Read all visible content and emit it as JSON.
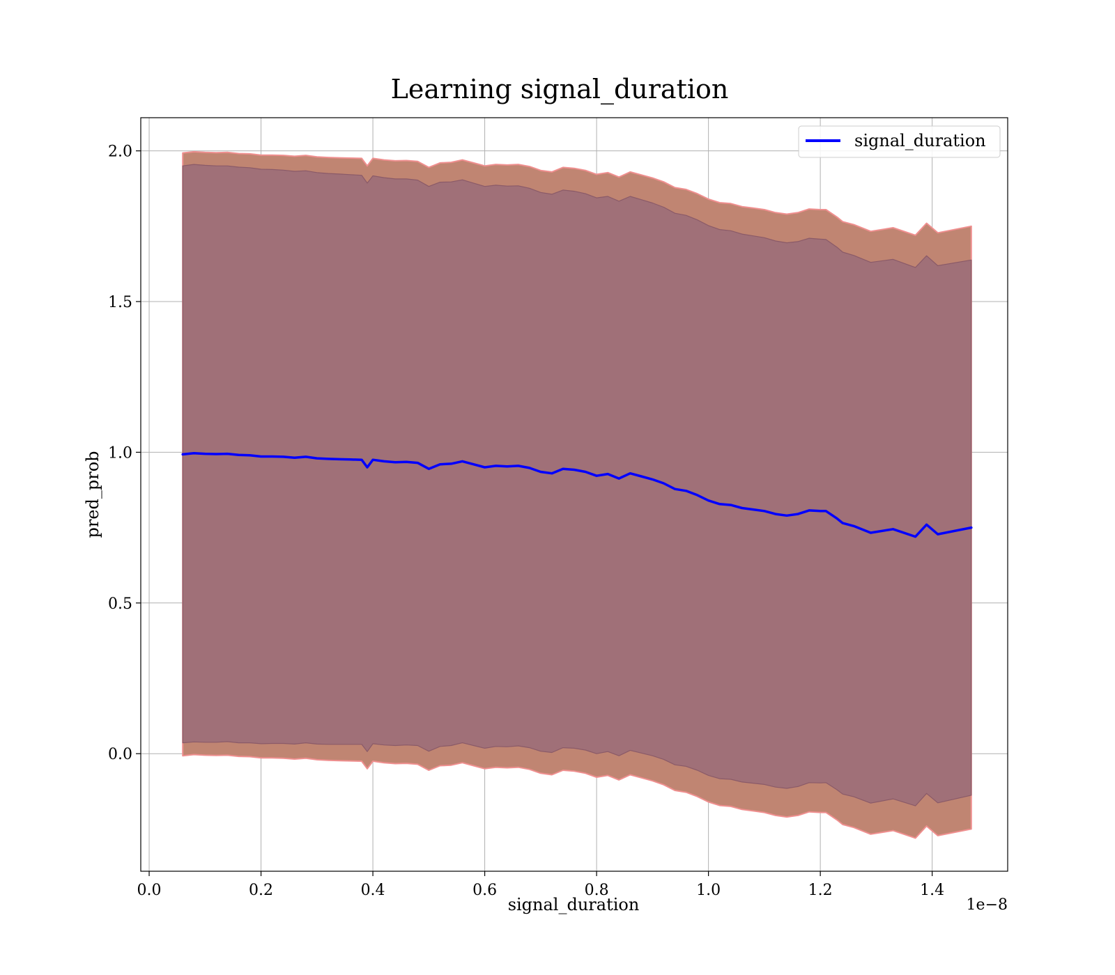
{
  "chart_data": {
    "type": "line",
    "title": "Learning signal_duration",
    "xlabel": "signal_duration",
    "ylabel": "pred_prob",
    "x_offset_text": "1e−8",
    "x_multiplier": 1e-08,
    "xlim": [
      -0.015,
      1.535
    ],
    "ylim": [
      -0.39,
      2.11
    ],
    "xticks": [
      0.0,
      0.2,
      0.4,
      0.6,
      0.8,
      1.0,
      1.2,
      1.4
    ],
    "xtick_labels": [
      "0.0",
      "0.2",
      "0.4",
      "0.6",
      "0.8",
      "1.0",
      "1.2",
      "1.4"
    ],
    "yticks": [
      0.0,
      0.5,
      1.0,
      1.5,
      2.0
    ],
    "ytick_labels": [
      "0.0",
      "0.5",
      "1.0",
      "1.5",
      "2.0"
    ],
    "grid": true,
    "legend_position": "top-right",
    "series": [
      {
        "name": "signal_duration",
        "color": "#0000ff",
        "x": [
          0.06,
          0.08,
          0.1,
          0.12,
          0.14,
          0.16,
          0.18,
          0.2,
          0.22,
          0.24,
          0.26,
          0.28,
          0.3,
          0.32,
          0.34,
          0.36,
          0.38,
          0.39,
          0.4,
          0.42,
          0.44,
          0.46,
          0.48,
          0.5,
          0.52,
          0.54,
          0.56,
          0.58,
          0.6,
          0.62,
          0.64,
          0.66,
          0.68,
          0.7,
          0.72,
          0.74,
          0.76,
          0.78,
          0.8,
          0.82,
          0.84,
          0.86,
          0.88,
          0.9,
          0.92,
          0.94,
          0.96,
          0.98,
          1.0,
          1.02,
          1.04,
          1.06,
          1.08,
          1.1,
          1.12,
          1.14,
          1.16,
          1.18,
          1.2,
          1.21,
          1.23,
          1.24,
          1.26,
          1.29,
          1.33,
          1.37,
          1.39,
          1.41,
          1.47
        ],
        "y": [
          0.993,
          0.997,
          0.995,
          0.994,
          0.995,
          0.991,
          0.99,
          0.986,
          0.986,
          0.985,
          0.982,
          0.985,
          0.98,
          0.978,
          0.977,
          0.976,
          0.975,
          0.95,
          0.975,
          0.97,
          0.967,
          0.968,
          0.965,
          0.945,
          0.96,
          0.962,
          0.97,
          0.96,
          0.95,
          0.955,
          0.953,
          0.955,
          0.948,
          0.935,
          0.93,
          0.945,
          0.942,
          0.935,
          0.922,
          0.928,
          0.913,
          0.93,
          0.92,
          0.91,
          0.897,
          0.878,
          0.872,
          0.858,
          0.84,
          0.828,
          0.825,
          0.815,
          0.81,
          0.805,
          0.795,
          0.79,
          0.795,
          0.807,
          0.805,
          0.805,
          0.78,
          0.765,
          0.755,
          0.733,
          0.745,
          0.72,
          0.76,
          0.728,
          0.75
        ]
      }
    ],
    "bands": [
      {
        "kind": "outer",
        "fill": "#c08572",
        "edge": "#ef8f8f",
        "upper": [
          1.993,
          1.997,
          1.995,
          1.994,
          1.995,
          1.991,
          1.99,
          1.986,
          1.986,
          1.985,
          1.982,
          1.985,
          1.98,
          1.978,
          1.977,
          1.976,
          1.975,
          1.95,
          1.975,
          1.97,
          1.967,
          1.968,
          1.965,
          1.945,
          1.96,
          1.962,
          1.97,
          1.96,
          1.95,
          1.955,
          1.953,
          1.955,
          1.948,
          1.935,
          1.93,
          1.945,
          1.942,
          1.935,
          1.922,
          1.928,
          1.913,
          1.93,
          1.92,
          1.91,
          1.897,
          1.878,
          1.872,
          1.858,
          1.84,
          1.828,
          1.825,
          1.815,
          1.81,
          1.805,
          1.795,
          1.79,
          1.795,
          1.807,
          1.805,
          1.805,
          1.78,
          1.765,
          1.755,
          1.733,
          1.745,
          1.72,
          1.76,
          1.728,
          1.75
        ],
        "lower": [
          -0.007,
          -0.003,
          -0.005,
          -0.006,
          -0.005,
          -0.009,
          -0.01,
          -0.014,
          -0.014,
          -0.015,
          -0.018,
          -0.015,
          -0.02,
          -0.022,
          -0.023,
          -0.024,
          -0.025,
          -0.05,
          -0.025,
          -0.03,
          -0.033,
          -0.032,
          -0.035,
          -0.055,
          -0.04,
          -0.038,
          -0.03,
          -0.04,
          -0.05,
          -0.045,
          -0.047,
          -0.045,
          -0.052,
          -0.065,
          -0.07,
          -0.055,
          -0.058,
          -0.065,
          -0.078,
          -0.072,
          -0.087,
          -0.07,
          -0.08,
          -0.09,
          -0.103,
          -0.122,
          -0.128,
          -0.142,
          -0.16,
          -0.172,
          -0.175,
          -0.185,
          -0.19,
          -0.195,
          -0.205,
          -0.21,
          -0.205,
          -0.193,
          -0.195,
          -0.195,
          -0.22,
          -0.235,
          -0.245,
          -0.267,
          -0.255,
          -0.28,
          -0.24,
          -0.272,
          -0.25
        ]
      },
      {
        "kind": "inner",
        "fill": "#a07078",
        "edge": "#8a5a68",
        "upper": [
          1.95,
          1.955,
          1.952,
          1.95,
          1.95,
          1.946,
          1.944,
          1.939,
          1.938,
          1.936,
          1.932,
          1.934,
          1.928,
          1.925,
          1.923,
          1.921,
          1.919,
          1.893,
          1.917,
          1.911,
          1.907,
          1.907,
          1.903,
          1.882,
          1.896,
          1.897,
          1.904,
          1.893,
          1.882,
          1.886,
          1.883,
          1.884,
          1.876,
          1.862,
          1.856,
          1.87,
          1.866,
          1.858,
          1.844,
          1.849,
          1.833,
          1.849,
          1.838,
          1.827,
          1.813,
          1.793,
          1.786,
          1.771,
          1.752,
          1.739,
          1.735,
          1.724,
          1.718,
          1.712,
          1.701,
          1.695,
          1.699,
          1.71,
          1.707,
          1.706,
          1.68,
          1.664,
          1.653,
          1.63,
          1.64,
          1.613,
          1.652,
          1.619,
          1.638
        ],
        "lower": [
          0.036,
          0.039,
          0.038,
          0.038,
          0.04,
          0.036,
          0.036,
          0.033,
          0.034,
          0.034,
          0.032,
          0.036,
          0.032,
          0.031,
          0.031,
          0.031,
          0.031,
          0.007,
          0.033,
          0.029,
          0.027,
          0.029,
          0.027,
          0.008,
          0.024,
          0.027,
          0.036,
          0.027,
          0.018,
          0.024,
          0.023,
          0.026,
          0.02,
          0.008,
          0.004,
          0.02,
          0.018,
          0.012,
          0.0,
          0.007,
          -0.007,
          0.011,
          0.002,
          -0.007,
          -0.019,
          -0.037,
          -0.042,
          -0.055,
          -0.072,
          -0.083,
          -0.085,
          -0.094,
          -0.098,
          -0.102,
          -0.111,
          -0.115,
          -0.109,
          -0.096,
          -0.097,
          -0.096,
          -0.12,
          -0.134,
          -0.143,
          -0.164,
          -0.15,
          -0.173,
          -0.132,
          -0.163,
          -0.138
        ]
      }
    ]
  }
}
